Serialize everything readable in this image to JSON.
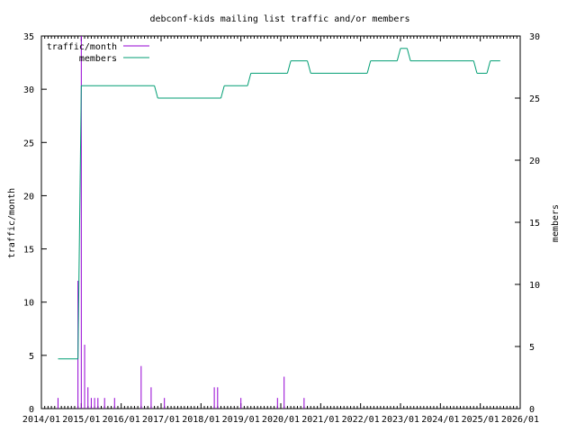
{
  "chart_data": {
    "type": "line",
    "title": "debconf-kids mailing list traffic and/or members",
    "xlabel": "",
    "ylabel": "traffic/month",
    "y2label": "members",
    "x_tick_labels": [
      "2014/01",
      "2015/01",
      "2016/01",
      "2017/01",
      "2018/01",
      "2019/01",
      "2020/01",
      "2021/01",
      "2022/01",
      "2023/01",
      "2024/01",
      "2025/01",
      "2026/01"
    ],
    "y_tick_labels": [
      "0",
      "5",
      "10",
      "15",
      "20",
      "25",
      "30",
      "35"
    ],
    "y2_tick_labels": [
      "0",
      "5",
      "10",
      "15",
      "20",
      "25",
      "30"
    ],
    "xlim": [
      "2014-01",
      "2026-01"
    ],
    "ylim": [
      0,
      35
    ],
    "y2lim": [
      0,
      30
    ],
    "grid": false,
    "legend_position": "top-left",
    "colors": {
      "traffic": "#9400d3",
      "members": "#009e73",
      "axes": "#000000"
    },
    "series": [
      {
        "name": "traffic/month",
        "style": "impulses",
        "axis": "y",
        "points": [
          [
            "2014-06",
            1
          ],
          [
            "2014-12",
            12
          ],
          [
            "2015-01",
            35
          ],
          [
            "2015-02",
            6
          ],
          [
            "2015-03",
            2
          ],
          [
            "2015-04",
            1
          ],
          [
            "2015-05",
            1
          ],
          [
            "2015-06",
            1
          ],
          [
            "2015-08",
            1
          ],
          [
            "2015-11",
            1
          ],
          [
            "2016-07",
            4
          ],
          [
            "2016-10",
            2
          ],
          [
            "2017-02",
            1
          ],
          [
            "2018-05",
            2
          ],
          [
            "2018-06",
            2
          ],
          [
            "2019-01",
            1
          ],
          [
            "2019-12",
            1
          ],
          [
            "2020-02",
            3
          ],
          [
            "2020-08",
            1
          ]
        ]
      },
      {
        "name": "members",
        "style": "line",
        "axis": "y2",
        "points": [
          [
            "2014-06",
            4
          ],
          [
            "2014-12",
            4
          ],
          [
            "2015-01",
            26
          ],
          [
            "2016-11",
            26
          ],
          [
            "2016-12",
            25
          ],
          [
            "2018-07",
            25
          ],
          [
            "2018-08",
            26
          ],
          [
            "2019-03",
            26
          ],
          [
            "2019-04",
            27
          ],
          [
            "2020-03",
            27
          ],
          [
            "2020-04",
            28
          ],
          [
            "2020-09",
            28
          ],
          [
            "2020-10",
            27
          ],
          [
            "2022-03",
            27
          ],
          [
            "2022-04",
            28
          ],
          [
            "2022-12",
            28
          ],
          [
            "2023-01",
            29
          ],
          [
            "2023-03",
            29
          ],
          [
            "2023-04",
            28
          ],
          [
            "2024-11",
            28
          ],
          [
            "2024-12",
            27
          ],
          [
            "2025-03",
            27
          ],
          [
            "2025-04",
            28
          ],
          [
            "2025-07",
            28
          ]
        ]
      }
    ]
  }
}
